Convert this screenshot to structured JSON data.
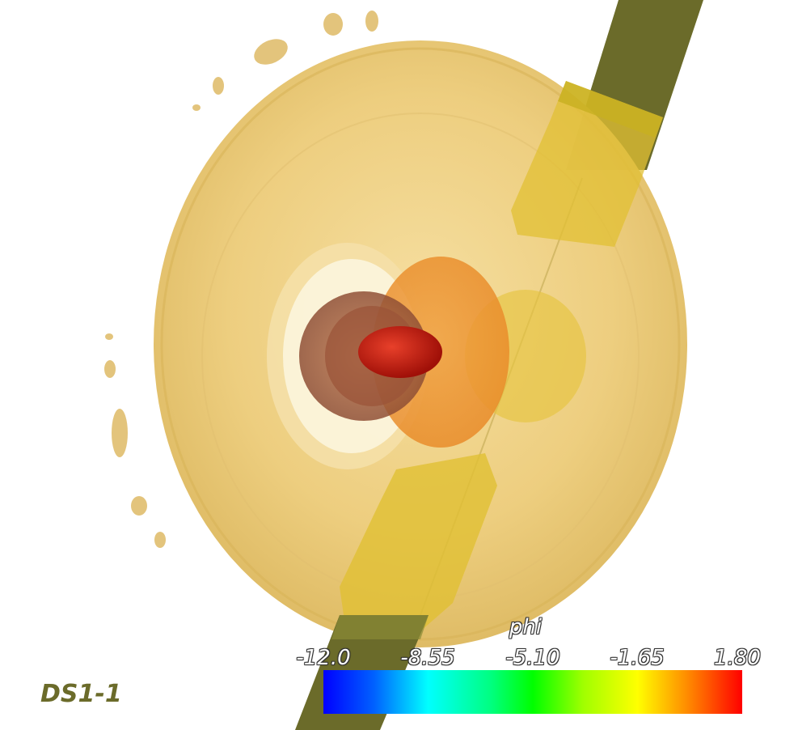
{
  "legend": {
    "title": "phi",
    "ticks": [
      "-12.0",
      "-8.55",
      "-5.10",
      "-1.65",
      "1.80"
    ]
  },
  "dataset_label": "DS1-1",
  "colors": {
    "outer_shell": "#e8c060",
    "rod": "#6b6b2a",
    "core": "#cc1a10",
    "inner_shell": "#d88a3a"
  }
}
